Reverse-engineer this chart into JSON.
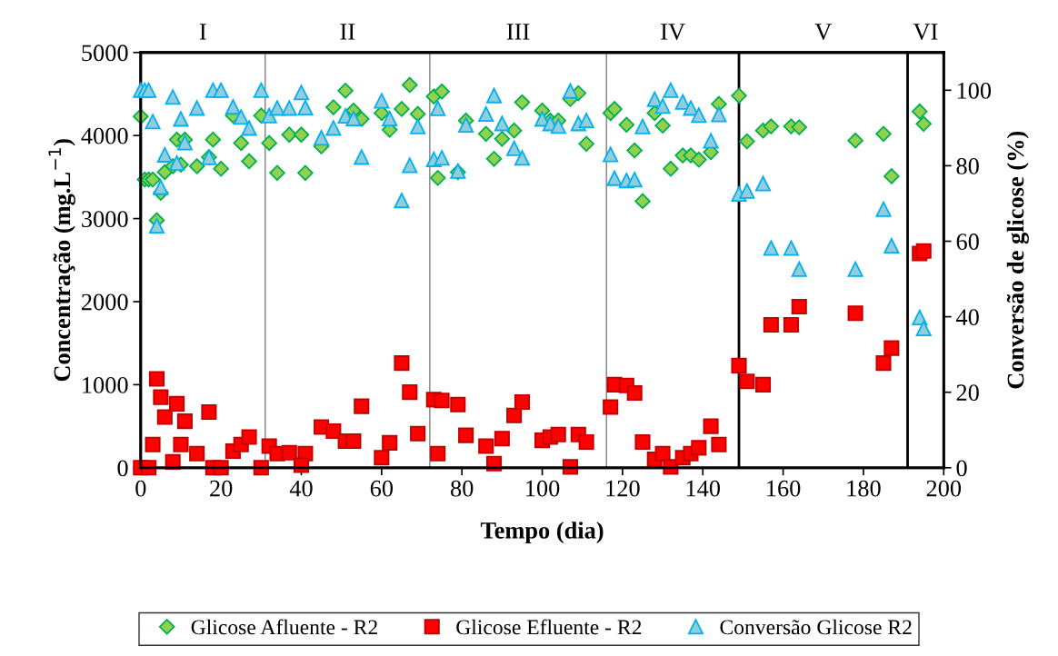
{
  "chart_data": {
    "type": "scatter",
    "xlabel": "Tempo (dia)",
    "ylabel": "Concentração (mg.L$^{−1}$)",
    "y2label": "Conversão de glicose (%)",
    "xlim": [
      0,
      200
    ],
    "xticks": [
      0,
      20,
      40,
      60,
      80,
      100,
      120,
      140,
      160,
      180,
      200
    ],
    "ylim": [
      0,
      5000
    ],
    "yticks": [
      0,
      1000,
      2000,
      3000,
      4000,
      5000
    ],
    "y2lim": [
      0,
      110
    ],
    "y2ticks": [
      0,
      20,
      40,
      60,
      80,
      100
    ],
    "grid": false,
    "legend": "bottom",
    "series": [
      {
        "name": "Glicose Afluente - R2",
        "color": "#92d050",
        "marker": "diamond",
        "x": [
          0,
          1,
          2,
          3,
          4,
          5,
          6,
          8,
          10,
          9,
          11,
          14,
          18,
          17,
          20,
          23,
          25,
          27,
          30,
          32,
          34,
          37,
          40,
          41,
          45,
          48,
          51,
          53,
          55,
          60,
          62,
          65,
          67,
          69,
          73,
          75,
          74,
          79,
          81,
          86,
          88,
          90,
          93,
          95,
          100,
          102,
          104,
          107,
          109,
          111,
          117,
          118,
          121,
          123,
          125,
          128,
          130,
          132,
          135,
          137,
          139,
          142,
          144,
          149,
          151,
          155,
          157,
          162,
          164,
          178,
          185,
          187,
          194,
          195
        ],
        "values": [
          4230,
          3470,
          3470,
          3470,
          2980,
          3310,
          3560,
          3630,
          3650,
          3950,
          3950,
          3630,
          3950,
          3740,
          3600,
          4240,
          3910,
          3690,
          4240,
          3910,
          3550,
          4010,
          4010,
          3550,
          3870,
          4340,
          4540,
          4300,
          4200,
          4270,
          4070,
          4320,
          4610,
          4260,
          4470,
          4530,
          3490,
          3560,
          4180,
          4020,
          3720,
          3960,
          4060,
          4400,
          4300,
          4180,
          4180,
          4440,
          4510,
          3900,
          4270,
          4320,
          4130,
          3820,
          3210,
          4270,
          4120,
          3600,
          3760,
          3760,
          3710,
          3800,
          4380,
          4480,
          3930,
          4060,
          4110,
          4110,
          4100,
          3940,
          4020,
          3510,
          4290,
          4140
        ]
      },
      {
        "name": "Glicose Efluente - R2",
        "color": "#ff0000",
        "marker": "square",
        "x": [
          0,
          2,
          3,
          4,
          5,
          6,
          8,
          9,
          10,
          11,
          14,
          17,
          18,
          20,
          23,
          25,
          27,
          30,
          32,
          34,
          37,
          41,
          40,
          45,
          48,
          51,
          53,
          55,
          60,
          62,
          65,
          67,
          69,
          73,
          75,
          74,
          79,
          81,
          86,
          88,
          90,
          93,
          95,
          100,
          102,
          104,
          107,
          109,
          111,
          117,
          118,
          121,
          123,
          125,
          128,
          130,
          132,
          135,
          137,
          139,
          142,
          144,
          149,
          151,
          155,
          157,
          162,
          164,
          178,
          185,
          187,
          194,
          195
        ],
        "values": [
          0,
          0,
          280,
          1070,
          850,
          610,
          70,
          770,
          280,
          560,
          170,
          670,
          0,
          0,
          200,
          280,
          370,
          0,
          260,
          170,
          180,
          170,
          30,
          490,
          440,
          320,
          320,
          740,
          120,
          300,
          1260,
          910,
          410,
          820,
          810,
          170,
          760,
          390,
          260,
          50,
          350,
          630,
          790,
          330,
          370,
          400,
          10,
          400,
          310,
          730,
          1000,
          990,
          900,
          310,
          100,
          170,
          10,
          120,
          170,
          240,
          500,
          280,
          1230,
          1040,
          1000,
          1720,
          1720,
          1940,
          1860,
          1260,
          1440,
          2580,
          2610
        ]
      },
      {
        "name": "Conversão Glicose R2",
        "color": "#92cddc",
        "marker": "triangle",
        "axis": "y2",
        "x": [
          0,
          1,
          2,
          3,
          4,
          5,
          6,
          8,
          9,
          10,
          11,
          14,
          17,
          18,
          20,
          23,
          25,
          27,
          30,
          32,
          34,
          37,
          40,
          41,
          45,
          48,
          51,
          53,
          55,
          60,
          62,
          65,
          67,
          69,
          73,
          75,
          74,
          79,
          81,
          86,
          88,
          90,
          93,
          95,
          100,
          102,
          104,
          107,
          109,
          111,
          117,
          118,
          121,
          123,
          125,
          128,
          130,
          132,
          135,
          137,
          139,
          142,
          144,
          149,
          151,
          155,
          157,
          162,
          164,
          178,
          185,
          187,
          194,
          195
        ],
        "values": [
          100,
          100,
          100,
          91.7,
          64.1,
          74.3,
          82.9,
          98.2,
          80.7,
          92.4,
          86.1,
          95.3,
          82.2,
          100,
          100,
          95.6,
          92.9,
          90.0,
          100,
          93.3,
          95.3,
          95.3,
          99.4,
          95.4,
          87.4,
          90.0,
          93.2,
          92.5,
          82.3,
          97.2,
          92.5,
          70.8,
          80.1,
          90.4,
          81.7,
          82.1,
          95.2,
          78.6,
          90.8,
          93.7,
          98.6,
          91.2,
          84.6,
          82.1,
          92.4,
          91.2,
          90.5,
          99.8,
          91.2,
          92.0,
          83.0,
          76.7,
          76.1,
          76.3,
          90.4,
          97.6,
          95.8,
          100,
          96.9,
          95.3,
          93.4,
          86.6,
          93.6,
          72.5,
          73.3,
          75.3,
          58.2,
          58.2,
          52.6,
          52.6,
          68.5,
          58.8,
          39.8,
          36.9
        ]
      }
    ],
    "ref_lines": [
      {
        "axis": "x",
        "value": 31,
        "color": "#808080"
      },
      {
        "axis": "x",
        "value": 72,
        "color": "#808080"
      },
      {
        "axis": "x",
        "value": 116,
        "color": "#808080"
      },
      {
        "axis": "x",
        "value": 149,
        "color": "#000000"
      },
      {
        "axis": "x",
        "value": 191,
        "color": "#000000"
      }
    ],
    "annotations": [
      "I",
      "II",
      "III",
      "IV",
      "V",
      "VI"
    ]
  }
}
